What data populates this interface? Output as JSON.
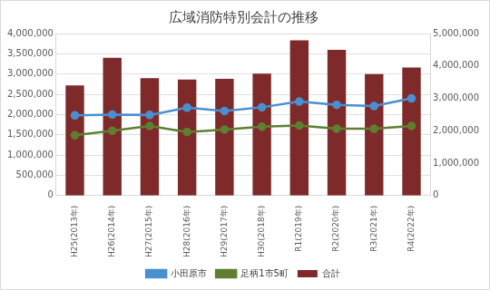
{
  "chart_data": {
    "type": "bar",
    "title": "広域消防特別会計の推移",
    "categories": [
      "H25(2013年)",
      "H26(2014年)",
      "H27(2015年)",
      "H28(2016年)",
      "H29(2017年)",
      "H30(2018年)",
      "R1(2019年)",
      "R2(2020年)",
      "R3(2021年)",
      "R4(2022年)"
    ],
    "series": [
      {
        "name": "合計",
        "type": "bar",
        "axis": "y2",
        "color": "#7f2a2a",
        "values": [
          3400000,
          4250000,
          3620000,
          3580000,
          3600000,
          3760000,
          4790000,
          4500000,
          3750000,
          3950000
        ]
      },
      {
        "name": "小田原市",
        "type": "line",
        "color": "#4a8fd0",
        "marker": "circle",
        "values": [
          1980000,
          2000000,
          1990000,
          2170000,
          2090000,
          2180000,
          2320000,
          2240000,
          2210000,
          2400000
        ]
      },
      {
        "name": "足柄1市5町",
        "type": "line",
        "color": "#5e7f32",
        "marker": "circle",
        "values": [
          1490000,
          1600000,
          1720000,
          1570000,
          1630000,
          1700000,
          1730000,
          1650000,
          1650000,
          1720000
        ]
      }
    ],
    "ylim": [
      0,
      4000000
    ],
    "yticks": [
      {
        "value": 0,
        "label": "0"
      },
      {
        "value": 500000,
        "label": "500,000"
      },
      {
        "value": 1000000,
        "label": "1,000,000"
      },
      {
        "value": 1500000,
        "label": "1,500,000"
      },
      {
        "value": 2000000,
        "label": "2,000,000"
      },
      {
        "value": 2500000,
        "label": "2,500,000"
      },
      {
        "value": 3000000,
        "label": "3,000,000"
      },
      {
        "value": 3500000,
        "label": "3,500,000"
      },
      {
        "value": 4000000,
        "label": "4,000,000"
      }
    ],
    "y2lim": [
      0,
      5000000
    ],
    "y2ticks": [
      {
        "value": 0,
        "label": "0"
      },
      {
        "value": 1000000,
        "label": "1,000,000"
      },
      {
        "value": 2000000,
        "label": "2,000,000"
      },
      {
        "value": 3000000,
        "label": "3,000,000"
      },
      {
        "value": 4000000,
        "label": "4,000,000"
      },
      {
        "value": 5000000,
        "label": "5,000,000"
      }
    ],
    "grid": true,
    "legend": "bottom"
  }
}
